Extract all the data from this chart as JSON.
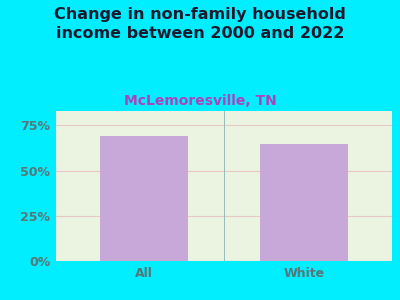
{
  "categories": [
    "All",
    "White"
  ],
  "values": [
    69,
    65
  ],
  "bar_color": "#c8a8d8",
  "title": "Change in non-family household\nincome between 2000 and 2022",
  "subtitle": "McLemoresville, TN",
  "yticks": [
    0,
    25,
    50,
    75
  ],
  "ytick_labels": [
    "0%",
    "25%",
    "50%",
    "75%"
  ],
  "ylim": [
    0,
    83
  ],
  "background_color": "#00eeff",
  "plot_bg_color": "#eaf4e0",
  "grid_color": "#e8c8c8",
  "title_color": "#1a1a2e",
  "subtitle_color": "#aa44bb",
  "tick_label_color": "#557777",
  "xtick_color": "#557777",
  "title_fontsize": 11.5,
  "subtitle_fontsize": 10,
  "tick_fontsize": 9,
  "bar_width": 0.55
}
